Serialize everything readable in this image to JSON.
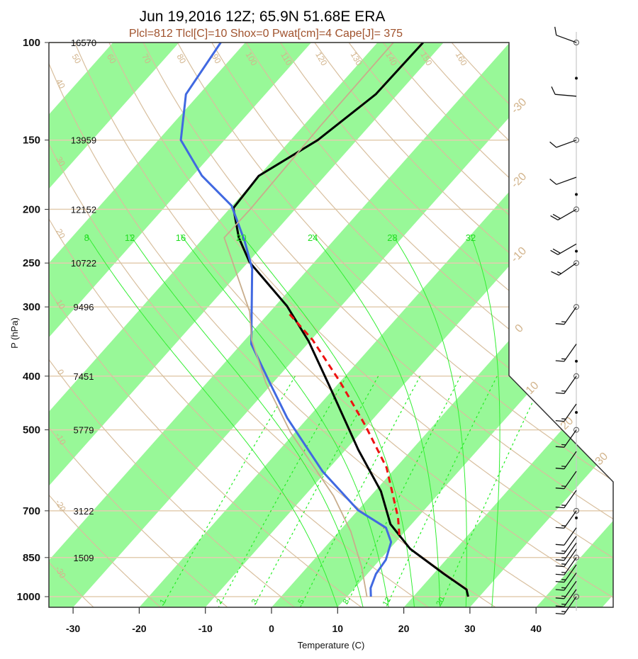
{
  "chart_data": {
    "type": "line",
    "subtype": "skew-t log-p",
    "title": "Jun 19,2016 12Z; 65.9N 51.68E ERA",
    "subtitle": "Plcl=812 Tlcl[C]=10 Shox=0 Pwat[cm]=4 Cape[J]= 375",
    "xlabel": "Temperature (C)",
    "ylabel": "P (hPa)",
    "xlim": [
      -33,
      47
    ],
    "ylim": [
      1045,
      100
    ],
    "x_ticks": [
      "-30",
      "-20",
      "-10",
      "0",
      "10",
      "20",
      "30",
      "40"
    ],
    "x_tick_values": [
      -30,
      -20,
      -10,
      0,
      10,
      20,
      30,
      40
    ],
    "pressure_levels": [
      {
        "p": 100,
        "label": "100",
        "height": "16570"
      },
      {
        "p": 150,
        "label": "150",
        "height": "13959"
      },
      {
        "p": 200,
        "label": "200",
        "height": "12152"
      },
      {
        "p": 250,
        "label": "250",
        "height": "10722"
      },
      {
        "p": 300,
        "label": "300",
        "height": "9496"
      },
      {
        "p": 400,
        "label": "400",
        "height": "7451"
      },
      {
        "p": 500,
        "label": "500",
        "height": "5779"
      },
      {
        "p": 700,
        "label": "700",
        "height": "3122"
      },
      {
        "p": 850,
        "label": "850",
        "height": "1509"
      },
      {
        "p": 1000,
        "label": "1000",
        "height": ""
      }
    ],
    "isotherm_bands_green": "T in [20k-20, 20k-10] C",
    "isotherm_labels": [
      "-30",
      "-20",
      "-10",
      "0",
      "10",
      "20",
      "30"
    ],
    "dry_adiabat_labels": [
      "-30",
      "-20",
      "-10",
      "0",
      "10",
      "20",
      "30",
      "40",
      "50",
      "60",
      "70",
      "80",
      "90",
      "100",
      "110",
      "120",
      "130",
      "140",
      "150",
      "160"
    ],
    "moist_adiabat_labels": [
      "8",
      "12",
      "16",
      "20",
      "24",
      "28",
      "32"
    ],
    "mixing_ratio_labels": [
      "1",
      "2",
      "3",
      "5",
      "8",
      "12",
      "20"
    ],
    "series": [
      {
        "name": "temperature",
        "color": "#000000",
        "points": [
          [
            1000,
            28.3
          ],
          [
            971,
            27.1
          ],
          [
            910,
            21.6
          ],
          [
            820,
            13.1
          ],
          [
            740,
            6.8
          ],
          [
            645,
            0.9
          ],
          [
            543,
            -8.1
          ],
          [
            417,
            -21.0
          ],
          [
            346,
            -30.2
          ],
          [
            299,
            -38.2
          ],
          [
            249,
            -49.8
          ],
          [
            225,
            -54.7
          ],
          [
            199,
            -59.5
          ],
          [
            174,
            -60.0
          ],
          [
            150,
            -55.9
          ],
          [
            124,
            -53.3
          ],
          [
            100,
            -53.1
          ]
        ]
      },
      {
        "name": "dewpoint",
        "color": "#4169e1",
        "points": [
          [
            1000,
            13.6
          ],
          [
            965,
            12.4
          ],
          [
            910,
            11.3
          ],
          [
            858,
            10.9
          ],
          [
            797,
            9.3
          ],
          [
            751,
            6.6
          ],
          [
            698,
            0.0
          ],
          [
            594,
            -10.6
          ],
          [
            476,
            -23.1
          ],
          [
            411,
            -30.5
          ],
          [
            350,
            -38.5
          ],
          [
            256,
            -48.5
          ],
          [
            228,
            -53.4
          ],
          [
            197,
            -60.1
          ],
          [
            174,
            -68.6
          ],
          [
            150,
            -76.6
          ],
          [
            124,
            -82.0
          ],
          [
            100,
            -83.7
          ]
        ]
      },
      {
        "name": "parcel",
        "color": "#ee1111",
        "dashed": true,
        "points": [
          [
            774,
            9.6
          ],
          [
            719,
            7.0
          ],
          [
            585,
            -1.4
          ],
          [
            490,
            -10.4
          ],
          [
            411,
            -19.8
          ],
          [
            344,
            -29.8
          ],
          [
            306,
            -37.4
          ]
        ]
      },
      {
        "name": "tan_curve",
        "color": "#c8ad8c",
        "points": [
          [
            1000,
            13.0
          ],
          [
            884,
            8.2
          ],
          [
            763,
            1.8
          ],
          [
            658,
            -5.6
          ],
          [
            505,
            -20.7
          ],
          [
            411,
            -31.1
          ],
          [
            344,
            -39.0
          ],
          [
            306,
            -43.1
          ],
          [
            225,
            -56.9
          ],
          [
            200,
            -56.8
          ],
          [
            142,
            -57.4
          ],
          [
            100,
            -57.6
          ]
        ]
      }
    ],
    "winds": [
      {
        "p": 100,
        "dir": 290,
        "spd": 10
      },
      {
        "p": 116,
        "dir": 0,
        "spd": 0
      },
      {
        "p": 125,
        "dir": 275,
        "spd": 10
      },
      {
        "p": 150,
        "dir": 250,
        "spd": 10
      },
      {
        "p": 175,
        "dir": 250,
        "spd": 10
      },
      {
        "p": 188,
        "dir": 0,
        "spd": 0
      },
      {
        "p": 200,
        "dir": 240,
        "spd": 20
      },
      {
        "p": 231,
        "dir": 240,
        "spd": 20
      },
      {
        "p": 238,
        "dir": 0,
        "spd": 0
      },
      {
        "p": 250,
        "dir": 235,
        "spd": 15
      },
      {
        "p": 300,
        "dir": 215,
        "spd": 15
      },
      {
        "p": 350,
        "dir": 215,
        "spd": 15
      },
      {
        "p": 376,
        "dir": 0,
        "spd": 0
      },
      {
        "p": 400,
        "dir": 215,
        "spd": 15
      },
      {
        "p": 449,
        "dir": 215,
        "spd": 15
      },
      {
        "p": 465,
        "dir": 0,
        "spd": 0
      },
      {
        "p": 500,
        "dir": 215,
        "spd": 15
      },
      {
        "p": 547,
        "dir": 215,
        "spd": 15
      },
      {
        "p": 594,
        "dir": 215,
        "spd": 15
      },
      {
        "p": 643,
        "dir": 215,
        "spd": 15
      },
      {
        "p": 700,
        "dir": 215,
        "spd": 15
      },
      {
        "p": 721,
        "dir": 0,
        "spd": 0
      },
      {
        "p": 751,
        "dir": 215,
        "spd": 10
      },
      {
        "p": 778,
        "dir": 215,
        "spd": 15
      },
      {
        "p": 800,
        "dir": 215,
        "spd": 15
      },
      {
        "p": 821,
        "dir": 215,
        "spd": 15
      },
      {
        "p": 850,
        "dir": 215,
        "spd": 15
      },
      {
        "p": 876,
        "dir": 215,
        "spd": 15
      },
      {
        "p": 906,
        "dir": 215,
        "spd": 15
      },
      {
        "p": 938,
        "dir": 215,
        "spd": 15
      },
      {
        "p": 970,
        "dir": 215,
        "spd": 15
      },
      {
        "p": 1000,
        "dir": 215,
        "spd": 15
      }
    ],
    "colors": {
      "band": "#98f898",
      "dry_adiabat": "#d8bf9e",
      "isobar": "#e3cdb0",
      "moist_adiabat": "#33ee33",
      "mixing_ratio": "#22ee22",
      "frame": "#333333",
      "wind": "#111111"
    }
  }
}
